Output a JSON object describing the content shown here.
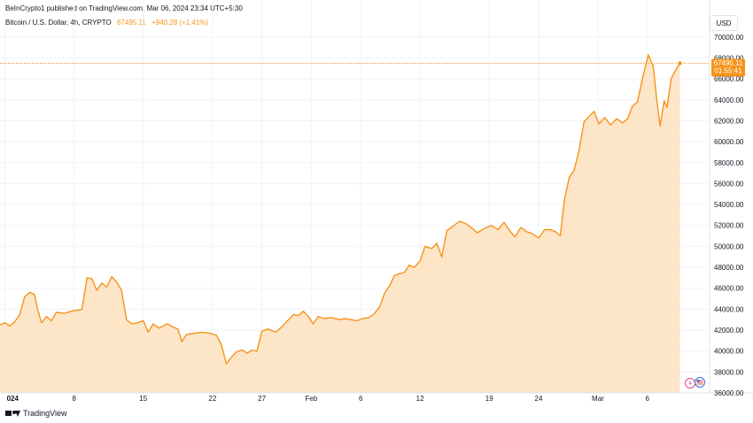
{
  "header": {
    "published": "BeInCrypto1 published on TradingView.com, Mar 06, 2024 23:34 UTC+5:30"
  },
  "legend": {
    "symbol": "Bitcoin / U.S. Dollar, 4h, CRYPTO",
    "price": "67495.11",
    "change": "+940.28 (+1.41%)"
  },
  "currency_button": "USD",
  "price_badge": {
    "price": "67495.11",
    "countdown": "01:55:41"
  },
  "footer": {
    "brand": "TradingView"
  },
  "colors": {
    "line": "#f7931a",
    "area_fill": "#fde5c8",
    "badge": "#f7931a",
    "grid": "#f0f3fa",
    "axis_text": "#131722"
  },
  "chart_data": {
    "type": "area",
    "title": "",
    "xlabel": "",
    "ylabel": "",
    "ylim": [
      36000,
      71000
    ],
    "y_ticks": [
      36000,
      38000,
      40000,
      42000,
      44000,
      46000,
      48000,
      50000,
      52000,
      54000,
      56000,
      58000,
      60000,
      62000,
      64000,
      66000,
      68000,
      70000
    ],
    "y_tick_labels": [
      "36000.00",
      "38000.00",
      "40000.00",
      "42000.00",
      "44000.00",
      "46000.00",
      "48000.00",
      "50000.00",
      "52000.00",
      "54000.00",
      "56000.00",
      "58000.00",
      "60000.00",
      "62000.00",
      "64000.00",
      "66000.00",
      "68000.00",
      "70000.00"
    ],
    "x_ticks": [
      {
        "day": 0,
        "label": "024"
      },
      {
        "day": 7,
        "label": "8"
      },
      {
        "day": 14,
        "label": "15"
      },
      {
        "day": 21,
        "label": "22"
      },
      {
        "day": 26,
        "label": "27"
      },
      {
        "day": 31,
        "label": "Feb"
      },
      {
        "day": 36,
        "label": "6"
      },
      {
        "day": 42,
        "label": "12"
      },
      {
        "day": 49,
        "label": "19"
      },
      {
        "day": 54,
        "label": "24"
      },
      {
        "day": 60,
        "label": "Mar"
      },
      {
        "day": 65,
        "label": "6"
      }
    ],
    "x_range_days": [
      -0.5,
      71.3
    ],
    "points": [
      [
        -0.5,
        42500
      ],
      [
        0,
        42700
      ],
      [
        0.5,
        42400
      ],
      [
        1,
        42800
      ],
      [
        1.5,
        43500
      ],
      [
        2,
        45200
      ],
      [
        2.5,
        45600
      ],
      [
        3,
        45400
      ],
      [
        3.3,
        44000
      ],
      [
        3.7,
        42700
      ],
      [
        4.2,
        43300
      ],
      [
        4.7,
        42900
      ],
      [
        5.2,
        43700
      ],
      [
        6,
        43600
      ],
      [
        6.7,
        43800
      ],
      [
        7.3,
        43900
      ],
      [
        7.8,
        44000
      ],
      [
        8.3,
        47000
      ],
      [
        8.8,
        46900
      ],
      [
        9.3,
        45800
      ],
      [
        9.8,
        46500
      ],
      [
        10.3,
        46100
      ],
      [
        10.8,
        47100
      ],
      [
        11.3,
        46600
      ],
      [
        11.8,
        45800
      ],
      [
        12.3,
        43000
      ],
      [
        12.8,
        42600
      ],
      [
        13.4,
        42700
      ],
      [
        14,
        42900
      ],
      [
        14.5,
        41800
      ],
      [
        15,
        42600
      ],
      [
        15.6,
        42200
      ],
      [
        16.4,
        42600
      ],
      [
        17,
        42300
      ],
      [
        17.5,
        42100
      ],
      [
        17.9,
        40900
      ],
      [
        18.4,
        41600
      ],
      [
        19.1,
        41700
      ],
      [
        20,
        41800
      ],
      [
        20.8,
        41700
      ],
      [
        21.4,
        41500
      ],
      [
        21.9,
        40600
      ],
      [
        22.4,
        38800
      ],
      [
        22.9,
        39400
      ],
      [
        23.4,
        39900
      ],
      [
        24,
        40100
      ],
      [
        24.5,
        39800
      ],
      [
        25,
        40100
      ],
      [
        25.5,
        40000
      ],
      [
        26,
        41900
      ],
      [
        26.6,
        42100
      ],
      [
        27.4,
        41800
      ],
      [
        28,
        42300
      ],
      [
        28.6,
        42900
      ],
      [
        29.2,
        43500
      ],
      [
        29.7,
        43400
      ],
      [
        30.2,
        43800
      ],
      [
        30.7,
        43300
      ],
      [
        31.2,
        42600
      ],
      [
        31.7,
        43300
      ],
      [
        32.3,
        43100
      ],
      [
        33,
        43200
      ],
      [
        33.8,
        43000
      ],
      [
        34.4,
        43100
      ],
      [
        35,
        43000
      ],
      [
        35.6,
        42900
      ],
      [
        36.2,
        43100
      ],
      [
        36.8,
        43200
      ],
      [
        37.3,
        43500
      ],
      [
        37.9,
        44200
      ],
      [
        38.4,
        45500
      ],
      [
        38.9,
        46200
      ],
      [
        39.4,
        47200
      ],
      [
        39.9,
        47400
      ],
      [
        40.4,
        47500
      ],
      [
        40.9,
        48200
      ],
      [
        41.4,
        48000
      ],
      [
        42,
        48600
      ],
      [
        42.5,
        50000
      ],
      [
        43.2,
        49800
      ],
      [
        43.7,
        50300
      ],
      [
        44.2,
        49000
      ],
      [
        44.7,
        51500
      ],
      [
        45.3,
        51900
      ],
      [
        46,
        52400
      ],
      [
        46.6,
        52200
      ],
      [
        47.2,
        51800
      ],
      [
        47.8,
        51300
      ],
      [
        48.5,
        51700
      ],
      [
        49.2,
        52000
      ],
      [
        49.9,
        51600
      ],
      [
        50.5,
        52300
      ],
      [
        51,
        51600
      ],
      [
        51.6,
        50900
      ],
      [
        52.2,
        51800
      ],
      [
        52.8,
        51400
      ],
      [
        53.4,
        51200
      ],
      [
        54,
        50800
      ],
      [
        54.6,
        51600
      ],
      [
        55.2,
        51600
      ],
      [
        55.7,
        51400
      ],
      [
        56.2,
        51000
      ],
      [
        56.6,
        54400
      ],
      [
        57.1,
        56600
      ],
      [
        57.6,
        57300
      ],
      [
        58.1,
        59200
      ],
      [
        58.6,
        61900
      ],
      [
        59.1,
        62400
      ],
      [
        59.6,
        62900
      ],
      [
        60.1,
        61700
      ],
      [
        60.7,
        62300
      ],
      [
        61.3,
        61600
      ],
      [
        61.9,
        62200
      ],
      [
        62.5,
        61800
      ],
      [
        63,
        62200
      ],
      [
        63.5,
        63400
      ],
      [
        64,
        63800
      ],
      [
        64.5,
        66000
      ],
      [
        65.1,
        68300
      ],
      [
        65.6,
        67200
      ],
      [
        66,
        63600
      ],
      [
        66.3,
        61500
      ],
      [
        66.7,
        63900
      ],
      [
        67,
        63300
      ],
      [
        67.4,
        66000
      ],
      [
        67.9,
        66900
      ],
      [
        68.3,
        67495.11
      ]
    ],
    "last_price": 67495.11,
    "grid": true,
    "legend_position": "top-left"
  }
}
